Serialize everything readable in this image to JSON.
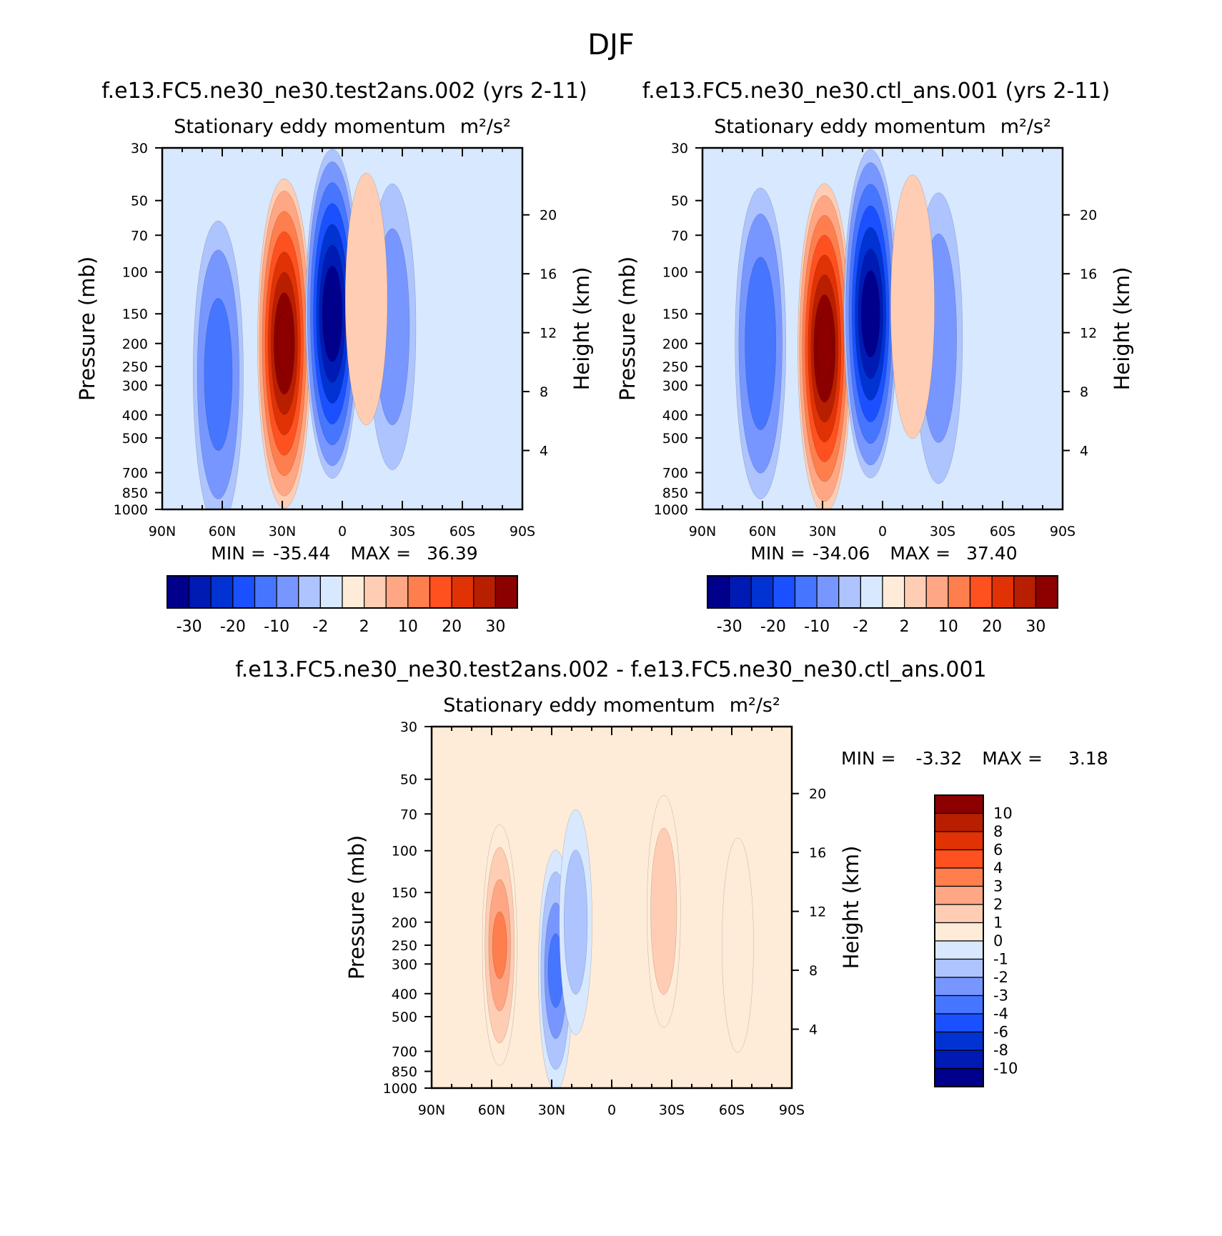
{
  "page": {
    "title": "DJF"
  },
  "tick_labels": {
    "lat": [
      "90N",
      "60N",
      "30N",
      "0",
      "30S",
      "60S",
      "90S"
    ],
    "pressure": [
      "30",
      "50",
      "70",
      "100",
      "150",
      "200",
      "250",
      "300",
      "400",
      "500",
      "700",
      "850",
      "1000"
    ],
    "height": [
      "20",
      "16",
      "12",
      "8",
      "4"
    ]
  },
  "chart_data": [
    {
      "type": "heatmap",
      "case": "f.e13.FC5.ne30_ne30.test2ans.002 (yrs 2-11)",
      "title": "Stationary eddy momentum",
      "units": "m²/s²",
      "xlabel": "",
      "ylabel": "Pressure (mb)",
      "ylabel_right": "Height (km)",
      "x_ticks": [
        "90N",
        "60N",
        "30N",
        "0",
        "30S",
        "60S",
        "90S"
      ],
      "xlim": [
        90,
        -90
      ],
      "ylim": [
        1000,
        30
      ],
      "y_scale": "log",
      "y_ticks": [
        30,
        50,
        70,
        100,
        150,
        200,
        250,
        300,
        400,
        500,
        700,
        850,
        1000
      ],
      "right_axis_ticks_km": [
        20,
        16,
        12,
        8,
        4
      ],
      "min_label": "MIN =",
      "max_label": "MAX =",
      "min": "-35.44",
      "max": "36.39",
      "features": [
        {
          "sign": "neg",
          "lat": 62,
          "p": 270,
          "value": -13
        },
        {
          "sign": "pos",
          "lat": 29,
          "p": 200,
          "value": 36.39
        },
        {
          "sign": "neg",
          "lat": 5,
          "p": 150,
          "value": -35.44
        },
        {
          "sign": "neg",
          "lat": -25,
          "p": 170,
          "value": -7
        },
        {
          "sign": "pos",
          "lat": -12,
          "p": 130,
          "value": 3
        }
      ],
      "colorbar": {
        "colors": [
          "#00008c",
          "#001ab4",
          "#0033d2",
          "#1a50ff",
          "#4676ff",
          "#7896ff",
          "#adc4ff",
          "#d8e8ff",
          "#ffecd8",
          "#ffcdb3",
          "#ffa784",
          "#ff7e4d",
          "#ff5020",
          "#e03205",
          "#b81e00",
          "#8c0000"
        ],
        "labels": [
          "-30",
          "-20",
          "-10",
          "-2",
          "2",
          "10",
          "20",
          "30"
        ]
      }
    },
    {
      "type": "heatmap",
      "case": "f.e13.FC5.ne30_ne30.ctl_ans.001 (yrs 2-11)",
      "title": "Stationary eddy momentum",
      "units": "m²/s²",
      "xlabel": "",
      "ylabel": "Pressure (mb)",
      "ylabel_right": "Height (km)",
      "x_ticks": [
        "90N",
        "60N",
        "30N",
        "0",
        "30S",
        "60S",
        "90S"
      ],
      "xlim": [
        90,
        -90
      ],
      "ylim": [
        1000,
        30
      ],
      "y_scale": "log",
      "y_ticks": [
        30,
        50,
        70,
        100,
        150,
        200,
        250,
        300,
        400,
        500,
        700,
        850,
        1000
      ],
      "right_axis_ticks_km": [
        20,
        16,
        12,
        8,
        4
      ],
      "min_label": "MIN =",
      "max_label": "MAX =",
      "min": "-34.06",
      "max": "37.40",
      "features": [
        {
          "sign": "neg",
          "lat": 61,
          "p": 200,
          "value": -15
        },
        {
          "sign": "pos",
          "lat": 29,
          "p": 210,
          "value": 37.4
        },
        {
          "sign": "neg",
          "lat": 6,
          "p": 150,
          "value": -34.06
        },
        {
          "sign": "neg",
          "lat": -28,
          "p": 190,
          "value": -8
        },
        {
          "sign": "pos",
          "lat": -15,
          "p": 140,
          "value": 4
        }
      ],
      "colorbar": {
        "colors": [
          "#00008c",
          "#001ab4",
          "#0033d2",
          "#1a50ff",
          "#4676ff",
          "#7896ff",
          "#adc4ff",
          "#d8e8ff",
          "#ffecd8",
          "#ffcdb3",
          "#ffa784",
          "#ff7e4d",
          "#ff5020",
          "#e03205",
          "#b81e00",
          "#8c0000"
        ],
        "labels": [
          "-30",
          "-20",
          "-10",
          "-2",
          "2",
          "10",
          "20",
          "30"
        ]
      }
    },
    {
      "type": "heatmap",
      "case": "f.e13.FC5.ne30_ne30.test2ans.002 - f.e13.FC5.ne30_ne30.ctl_ans.001",
      "title": "Stationary eddy momentum",
      "units": "m²/s²",
      "xlabel": "",
      "ylabel": "Pressure (mb)",
      "ylabel_right": "Height (km)",
      "x_ticks": [
        "90N",
        "60N",
        "30N",
        "0",
        "30S",
        "60S",
        "90S"
      ],
      "xlim": [
        90,
        -90
      ],
      "ylim": [
        1000,
        30
      ],
      "y_scale": "log",
      "y_ticks": [
        30,
        50,
        70,
        100,
        150,
        200,
        250,
        300,
        400,
        500,
        700,
        850,
        1000
      ],
      "right_axis_ticks_km": [
        20,
        16,
        12,
        8,
        4
      ],
      "min_label": "MIN =",
      "max_label": "MAX =",
      "min": "-3.32",
      "max": "3.18",
      "features": [
        {
          "sign": "pos",
          "lat": 56,
          "p": 250,
          "value": 3.18
        },
        {
          "sign": "neg",
          "lat": 28,
          "p": 320,
          "value": -3.32
        },
        {
          "sign": "neg",
          "lat": 18,
          "p": 200,
          "value": -1.5
        },
        {
          "sign": "pos",
          "lat": -26,
          "p": 180,
          "value": 2
        },
        {
          "sign": "pos",
          "lat": -63,
          "p": 250,
          "value": 1
        }
      ],
      "colorbar": {
        "colors": [
          "#00008c",
          "#001ab4",
          "#0033d2",
          "#1a50ff",
          "#4676ff",
          "#7896ff",
          "#adc4ff",
          "#d8e8ff",
          "#ffecd8",
          "#ffcdb3",
          "#ffa784",
          "#ff7e4d",
          "#ff5020",
          "#e03205",
          "#b81e00",
          "#8c0000"
        ],
        "labels": [
          "10",
          "8",
          "6",
          "4",
          "3",
          "2",
          "1",
          "0",
          "-1",
          "-2",
          "-3",
          "-4",
          "-6",
          "-8",
          "-10"
        ]
      }
    }
  ]
}
